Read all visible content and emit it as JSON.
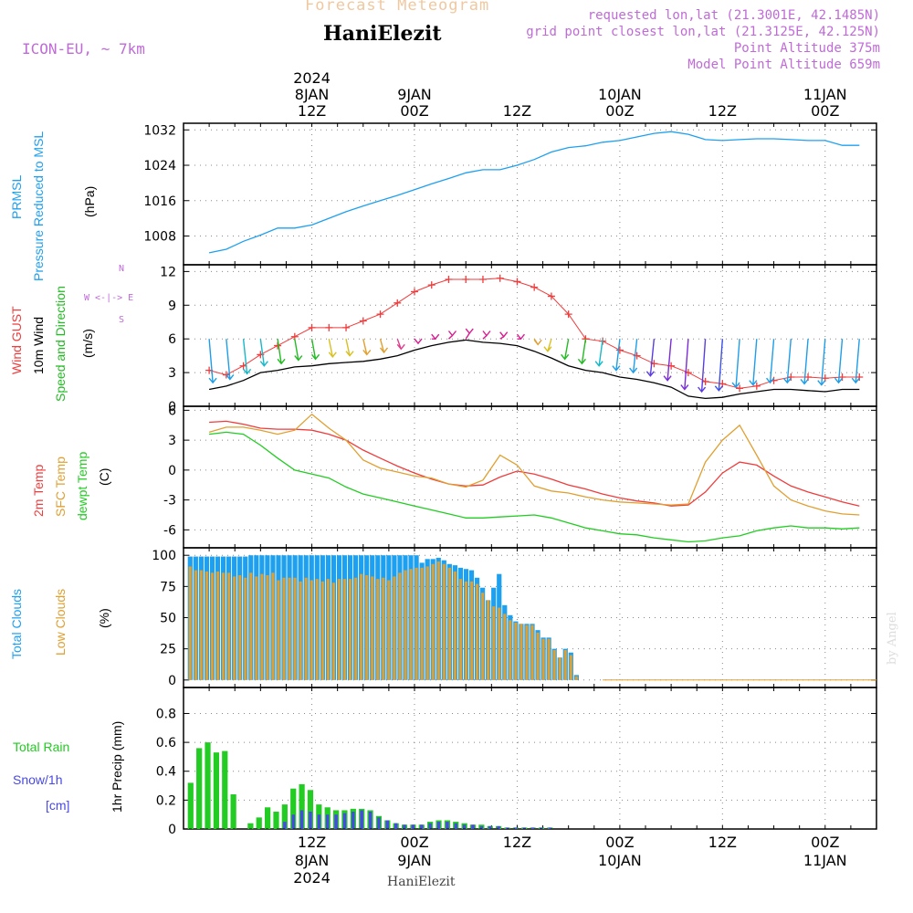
{
  "header": {
    "title": "Forecast Meteogram",
    "location": "HaniElezit",
    "model": "ICON-EU, ~ 7km",
    "requested": "requested lon,lat (21.3001E, 42.1485N)",
    "grid": "grid point closest lon,lat (21.3125E, 42.125N)",
    "point_alt": "Point Altitude 375m",
    "model_alt": "Model Point Altitude 659m",
    "footer": "HaniElezit",
    "watermark": "by Angel"
  },
  "time_axis": {
    "top_year": "2024",
    "ticks": [
      {
        "hour": 12,
        "line1": "8JAN",
        "line2": "12Z"
      },
      {
        "hour": 24,
        "line1": "9JAN",
        "line2": "00Z"
      },
      {
        "hour": 36,
        "line1": "",
        "line2": "12Z"
      },
      {
        "hour": 48,
        "line1": "10JAN",
        "line2": "00Z"
      },
      {
        "hour": 60,
        "line1": "",
        "line2": "12Z"
      },
      {
        "hour": 72,
        "line1": "11JAN",
        "line2": "00Z"
      }
    ],
    "bottom_ticks": [
      {
        "hour": 12,
        "line1": "12Z",
        "line2": "8JAN",
        "line3": "2024"
      },
      {
        "hour": 24,
        "line1": "00Z",
        "line2": "9JAN",
        "line3": ""
      },
      {
        "hour": 36,
        "line1": "12Z",
        "line2": "",
        "line3": ""
      },
      {
        "hour": 48,
        "line1": "00Z",
        "line2": "10JAN",
        "line3": ""
      },
      {
        "hour": 60,
        "line1": "12Z",
        "line2": "",
        "line3": ""
      },
      {
        "hour": 72,
        "line1": "00Z",
        "line2": "11JAN",
        "line3": ""
      }
    ]
  },
  "panels": {
    "pressure": {
      "label1": "PRMSL",
      "label2": "Pressure Reduced to MSL",
      "unit": "(hPa)",
      "color": "#1ea0f0"
    },
    "wind": {
      "label_gust": "Wind GUST",
      "label_wind": "10m Wind",
      "label_dir": "Speed and Direction",
      "unit": "(m/s)",
      "compass_n": "N",
      "compass_s": "S",
      "compass_we": "W <-|-> E",
      "gust_color": "#f03c3c",
      "wind_color": "#000000",
      "dir_color": "#22bb22"
    },
    "temp": {
      "label1": "2m Temp",
      "label2": "SFC Temp",
      "label3": "dewpt Temp",
      "unit": "(C)",
      "c1": "#f03c3c",
      "c2": "#e0a030",
      "c3": "#22cc22"
    },
    "clouds": {
      "label1": "Total Clouds",
      "label2": "Low Clouds",
      "unit": "(%)",
      "c1": "#1ea0f0",
      "c2": "#e0a030"
    },
    "precip": {
      "label1": "Total  Rain",
      "label2": "Snow/1h",
      "label3": "[cm]",
      "unit": "1hr Precip (mm)",
      "c1": "#22cc22",
      "c2": "#4848e8"
    }
  },
  "chart_data": [
    {
      "type": "line",
      "name": "pressure",
      "ylabel": "(hPa)",
      "ylim": [
        1001.5,
        1033.5
      ],
      "yticks": [
        1008,
        1016,
        1024,
        1032
      ],
      "x": [
        0,
        2,
        4,
        6,
        8,
        10,
        12,
        14,
        16,
        18,
        20,
        22,
        24,
        26,
        28,
        30,
        32,
        34,
        36,
        38,
        40,
        42,
        44,
        46,
        48,
        50,
        52,
        54,
        56,
        58,
        60,
        62,
        64,
        66,
        68,
        70,
        72,
        74,
        76
      ],
      "values": [
        1004.2,
        1005,
        1006.8,
        1008.2,
        1009.8,
        1009.8,
        1010.5,
        1012,
        1013.5,
        1014.8,
        1016,
        1017.2,
        1018.5,
        1019.8,
        1021,
        1022.3,
        1023,
        1023,
        1024,
        1025.3,
        1027,
        1028,
        1028.4,
        1029.2,
        1029.6,
        1030.4,
        1031.2,
        1031.6,
        1031,
        1029.8,
        1029.6,
        1029.8,
        1030,
        1030,
        1029.8,
        1029.6,
        1029.6,
        1028.5,
        1028.5
      ],
      "grid": true
    },
    {
      "type": "line",
      "name": "wind",
      "ylabel": "(m/s)",
      "ylim": [
        0,
        12.6
      ],
      "yticks": [
        0,
        3,
        6,
        9,
        12
      ],
      "x": [
        0,
        2,
        4,
        6,
        8,
        10,
        12,
        14,
        16,
        18,
        20,
        22,
        24,
        26,
        28,
        30,
        32,
        34,
        36,
        38,
        40,
        42,
        44,
        46,
        48,
        50,
        52,
        54,
        56,
        58,
        60,
        62,
        64,
        66,
        68,
        70,
        72,
        74,
        76
      ],
      "series": [
        {
          "key": "gust",
          "values": [
            3.2,
            2.8,
            3.6,
            4.6,
            5.4,
            6.2,
            7,
            7,
            7,
            7.6,
            8.2,
            9.2,
            10.2,
            10.8,
            11.3,
            11.3,
            11.3,
            11.4,
            11.1,
            10.6,
            9.8,
            8.2,
            6,
            5.8,
            5,
            4.5,
            3.8,
            3.6,
            3,
            2.2,
            2,
            1.6,
            1.8,
            2.3,
            2.6,
            2.6,
            2.5,
            2.6,
            2.6
          ]
        },
        {
          "key": "wind",
          "values": [
            1.5,
            1.8,
            2.3,
            3,
            3.2,
            3.5,
            3.6,
            3.8,
            3.9,
            4,
            4.2,
            4.5,
            5,
            5.4,
            5.7,
            5.9,
            5.7,
            5.6,
            5.4,
            4.9,
            4.3,
            3.6,
            3.2,
            3,
            2.6,
            2.4,
            2.1,
            1.7,
            0.9,
            0.7,
            0.8,
            1.1,
            1.3,
            1.5,
            1.5,
            1.4,
            1.3,
            1.5,
            1.5
          ]
        }
      ],
      "dir_colors": [
        "#1e9ee8",
        "#1e9ee8",
        "#18b8c8",
        "#18b8c8",
        "#22bb22",
        "#22bb22",
        "#22bb22",
        "#d8c020",
        "#d8c020",
        "#e0a030",
        "#e0a030",
        "#e03c8c",
        "#d81c90",
        "#d81c90",
        "#d81c90",
        "#d81c90",
        "#d81c90",
        "#d81c90",
        "#d81c90",
        "#e0a030",
        "#d8c020",
        "#22bb22",
        "#22bb22",
        "#18b8c8",
        "#1e9ee8",
        "#1e9ee8",
        "#5a3ce0",
        "#7a2cd8",
        "#7a2cd8",
        "#5a3ce0",
        "#3c50e8",
        "#1e9ee8",
        "#1e9ee8",
        "#1e9ee8",
        "#1e9ee8",
        "#1e9ee8",
        "#1e9ee8",
        "#1e9ee8",
        "#1e9ee8"
      ],
      "grid": true
    },
    {
      "type": "line",
      "name": "temperature",
      "ylabel": "(C)",
      "ylim": [
        -7.8,
        6.4
      ],
      "yticks": [
        -6,
        -3,
        0,
        3,
        6
      ],
      "x": [
        0,
        2,
        4,
        6,
        8,
        10,
        12,
        14,
        16,
        18,
        20,
        22,
        24,
        26,
        28,
        30,
        32,
        34,
        36,
        38,
        40,
        42,
        44,
        46,
        48,
        50,
        52,
        54,
        56,
        58,
        60,
        62,
        64,
        66,
        68,
        70,
        72,
        74,
        76
      ],
      "series": [
        {
          "key": "t2m",
          "values": [
            4.8,
            4.9,
            4.6,
            4.2,
            4.1,
            4.1,
            4,
            3.6,
            3,
            2,
            1.2,
            0.4,
            -0.3,
            -0.9,
            -1.4,
            -1.6,
            -1.5,
            -0.7,
            -0.1,
            -0.4,
            -0.9,
            -1.5,
            -1.9,
            -2.4,
            -2.8,
            -3.1,
            -3.3,
            -3.6,
            -3.5,
            -2.2,
            -0.3,
            0.8,
            0.5,
            -0.6,
            -1.6,
            -2.2,
            -2.7,
            -3.2,
            -3.6
          ]
        },
        {
          "key": "tsfc",
          "values": [
            3.8,
            4.3,
            4.3,
            4,
            3.6,
            4,
            5.6,
            4.2,
            3,
            1,
            0.2,
            -0.2,
            -0.6,
            -0.8,
            -1.4,
            -1.7,
            -1,
            1.5,
            0.5,
            -1.6,
            -2.1,
            -2.3,
            -2.7,
            -3,
            -3.2,
            -3.3,
            -3.4,
            -3.5,
            -3.4,
            0.8,
            3,
            4.5,
            1.5,
            -1.6,
            -3,
            -3.6,
            -4.1,
            -4.4,
            -4.5
          ]
        },
        {
          "key": "dewpt",
          "values": [
            3.6,
            3.8,
            3.6,
            2.5,
            1.2,
            0,
            -0.4,
            -0.8,
            -1.7,
            -2.4,
            -2.8,
            -3.2,
            -3.6,
            -4,
            -4.4,
            -4.8,
            -4.8,
            -4.7,
            -4.6,
            -4.5,
            -4.8,
            -5.3,
            -5.8,
            -6.1,
            -6.4,
            -6.5,
            -6.8,
            -7,
            -7.2,
            -7.1,
            -6.8,
            -6.6,
            -6.1,
            -5.8,
            -5.6,
            -5.8,
            -5.8,
            -5.9,
            -5.8
          ]
        }
      ],
      "grid": true
    },
    {
      "type": "bar",
      "name": "clouds",
      "ylabel": "(%)",
      "ylim": [
        -6,
        106
      ],
      "yticks": [
        0,
        25,
        50,
        75,
        100
      ],
      "series": [
        {
          "key": "total",
          "values": [
            99,
            99,
            99,
            99,
            99,
            99,
            99,
            99,
            99,
            99,
            99,
            100,
            100,
            100,
            100,
            100,
            100,
            100,
            100,
            100,
            100,
            100,
            100,
            100,
            100,
            100,
            100,
            100,
            100,
            100,
            100,
            100,
            100,
            100,
            100,
            100,
            100,
            100,
            100,
            100,
            100,
            100,
            94,
            97,
            97,
            98,
            96,
            93,
            92,
            90,
            89,
            88,
            82,
            74,
            64,
            74,
            85,
            60,
            52,
            47,
            45,
            45,
            45,
            40,
            34,
            34,
            25,
            18,
            25,
            22,
            4,
            0,
            0,
            0,
            0,
            0,
            0,
            0,
            0,
            0,
            0,
            0,
            0,
            0,
            0,
            0,
            0,
            0,
            0,
            0,
            0,
            0,
            0,
            0,
            0,
            0,
            0,
            0,
            0,
            0,
            0,
            0,
            0,
            0,
            0,
            0,
            0,
            0,
            0,
            0,
            0,
            0,
            0,
            0,
            0,
            0,
            0,
            0,
            0,
            0,
            0,
            0,
            0
          ]
        },
        {
          "key": "low",
          "values": [
            91,
            88,
            88,
            87,
            86,
            87,
            86,
            86,
            83,
            84,
            82,
            86,
            83,
            85,
            84,
            86,
            80,
            82,
            82,
            82,
            79,
            82,
            80,
            81,
            79,
            81,
            78,
            81,
            81,
            81,
            82,
            85,
            84,
            83,
            81,
            82,
            80,
            83,
            86,
            88,
            89,
            90,
            90,
            91,
            93,
            95,
            93,
            90,
            87,
            81,
            79,
            79,
            77,
            70,
            64,
            59,
            58,
            53,
            48,
            46,
            45,
            44,
            44,
            38,
            33,
            33,
            24,
            18,
            24,
            20,
            3,
            0,
            0,
            0,
            0,
            0,
            0,
            0,
            0,
            0,
            0,
            0,
            0,
            0,
            0,
            0,
            0,
            0,
            0,
            0,
            0,
            0,
            0,
            0,
            0,
            0,
            0,
            0,
            0,
            0,
            0,
            0,
            0,
            0,
            0,
            0,
            0,
            0,
            0,
            0,
            0,
            0,
            0,
            0,
            0,
            0,
            0,
            0,
            0,
            0,
            0,
            0,
            0
          ]
        }
      ],
      "grid": true
    },
    {
      "type": "bar",
      "name": "precipitation",
      "ylabel": "1hr Precip (mm)",
      "ylim": [
        0,
        0.98
      ],
      "yticks": [
        0,
        0.2,
        0.4,
        0.6,
        0.8
      ],
      "series": [
        {
          "key": "rain",
          "values": [
            0.32,
            0.56,
            0.6,
            0.53,
            0.54,
            0.24,
            0,
            0.04,
            0.08,
            0.15,
            0.12,
            0.17,
            0.28,
            0.31,
            0.27,
            0.17,
            0.15,
            0.13,
            0.13,
            0.14,
            0.14,
            0.13,
            0.09,
            0.06,
            0.04,
            0.03,
            0.03,
            0.03,
            0.05,
            0.06,
            0.06,
            0.05,
            0.04,
            0.03,
            0.03,
            0.02,
            0.02,
            0.01,
            0.01,
            0.01,
            0.01,
            0.01,
            0.01,
            0,
            0,
            0,
            0,
            0,
            0,
            0,
            0,
            0,
            0,
            0,
            0,
            0,
            0,
            0,
            0,
            0,
            0,
            0,
            0,
            0,
            0,
            0,
            0,
            0,
            0,
            0,
            0,
            0,
            0,
            0,
            0,
            0,
            0
          ]
        },
        {
          "key": "snow",
          "values": [
            0,
            0,
            0,
            0,
            0,
            0,
            0,
            0,
            0,
            0,
            0,
            0.05,
            0.1,
            0.13,
            0.12,
            0.1,
            0.1,
            0.1,
            0.11,
            0.12,
            0.13,
            0.12,
            0.08,
            0.06,
            0.04,
            0.03,
            0.03,
            0.03,
            0.04,
            0.05,
            0.05,
            0.04,
            0.03,
            0.03,
            0.02,
            0.02,
            0.02,
            0.01,
            0.01,
            0.01,
            0.01,
            0.01,
            0.01,
            0,
            0,
            0,
            0,
            0,
            0,
            0,
            0,
            0,
            0,
            0,
            0,
            0,
            0,
            0,
            0,
            0,
            0,
            0,
            0,
            0,
            0,
            0,
            0,
            0,
            0,
            0,
            0,
            0,
            0,
            0,
            0,
            0,
            0
          ]
        }
      ],
      "grid": true
    }
  ]
}
